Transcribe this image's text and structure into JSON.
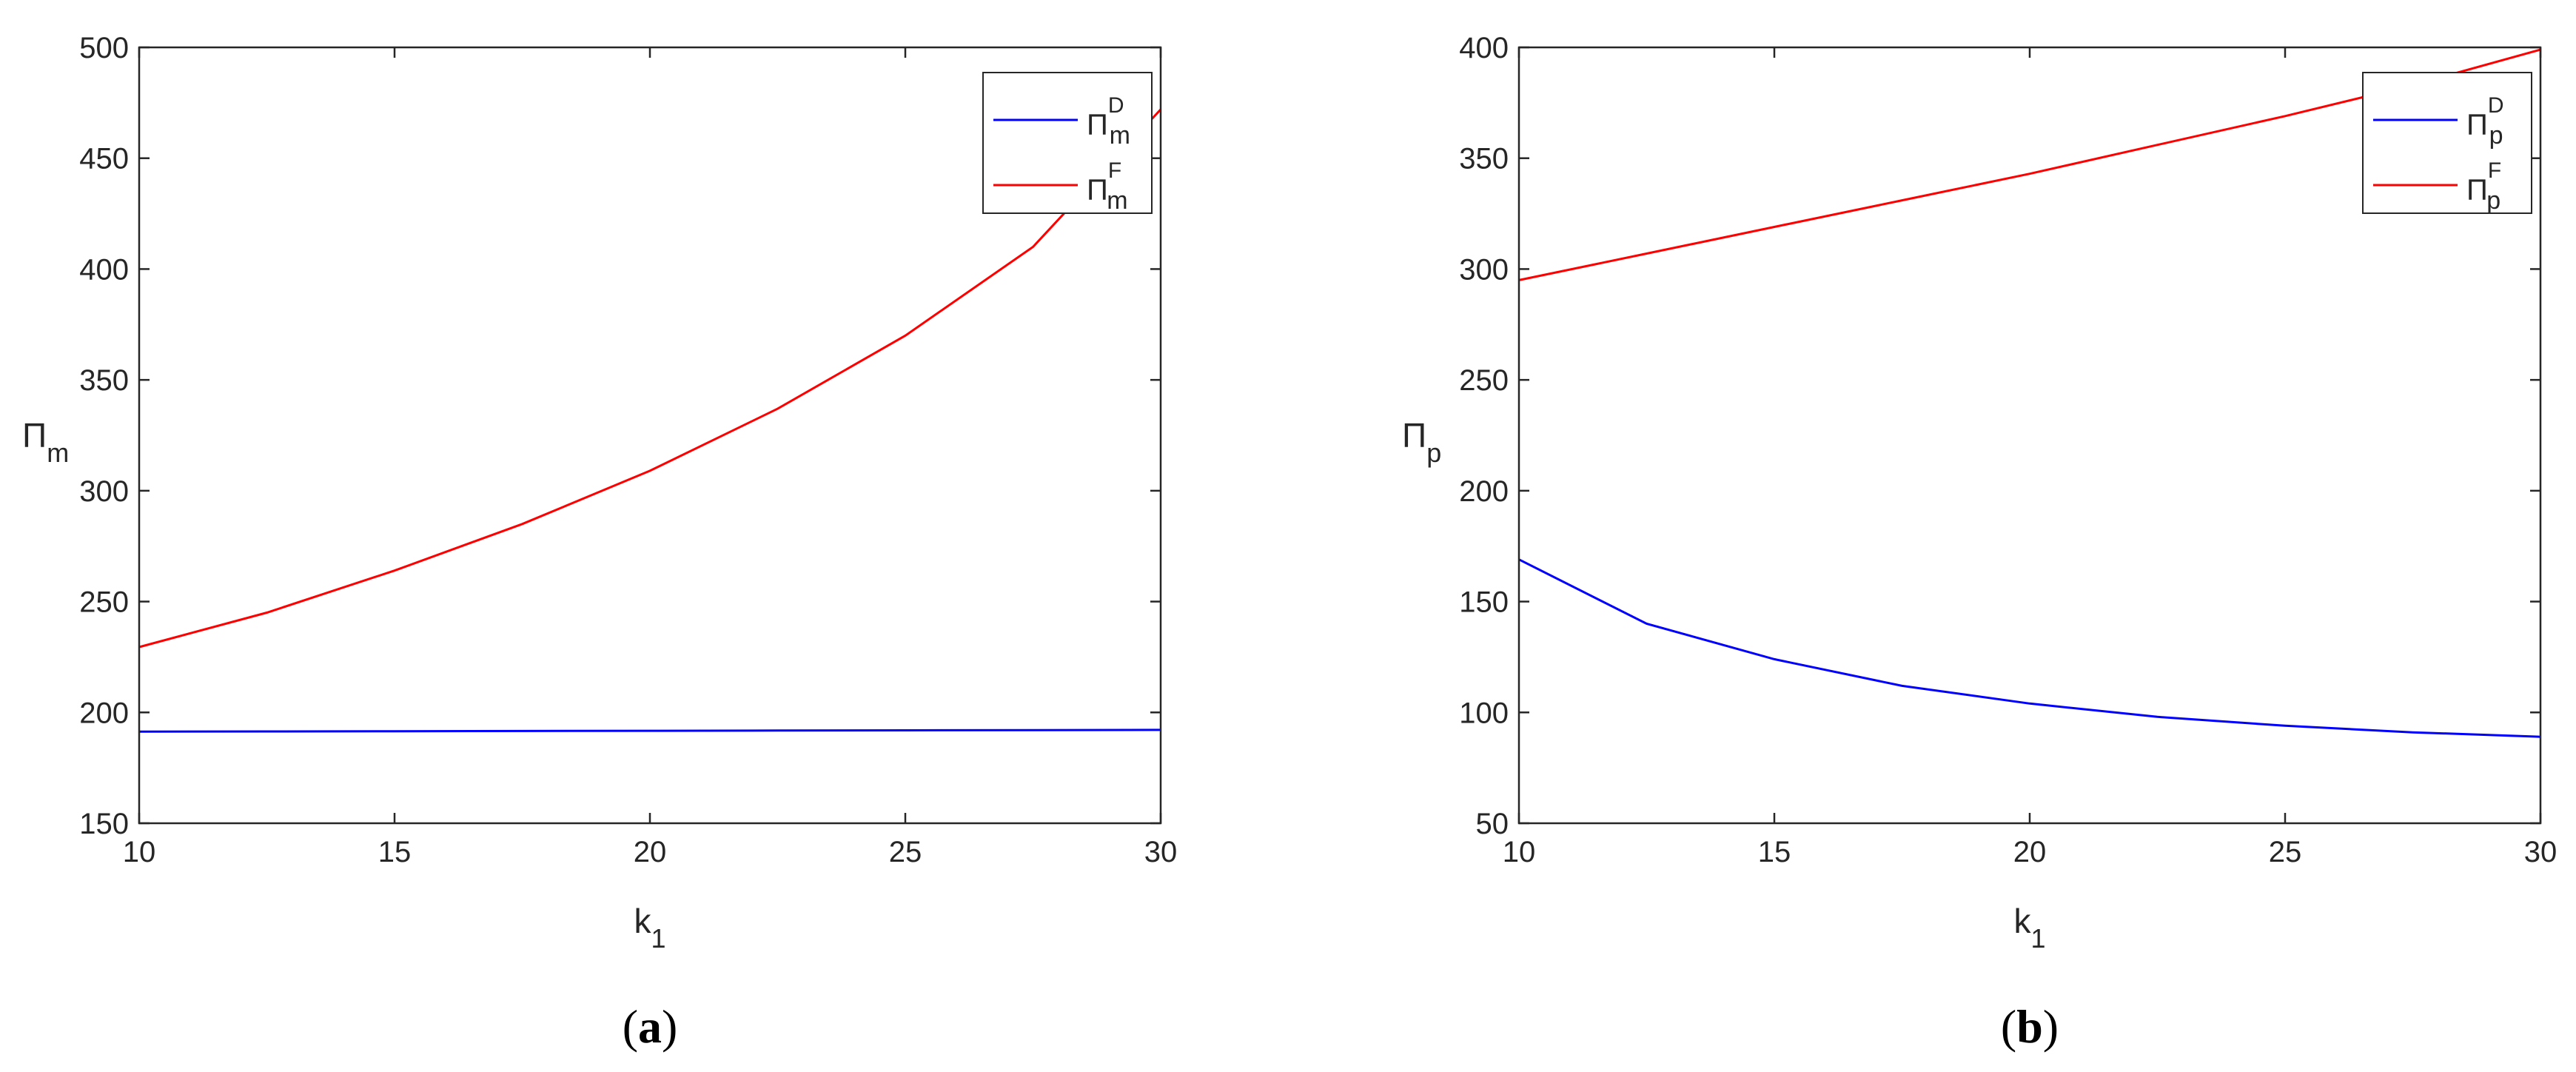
{
  "chart_data": [
    {
      "type": "line",
      "panel": "a",
      "caption": {
        "open": "(",
        "letter": "a",
        "close": ")"
      },
      "xlabel": {
        "main": "k",
        "sub": "1"
      },
      "ylabel": {
        "main": "Π",
        "sub": "m"
      },
      "xlim": [
        10,
        30
      ],
      "ylim": [
        150,
        500
      ],
      "xticks": [
        10,
        15,
        20,
        25,
        30
      ],
      "yticks": [
        150,
        200,
        250,
        300,
        350,
        400,
        450,
        500
      ],
      "grid": false,
      "legend_position": "top-right",
      "series": [
        {
          "name": {
            "main": "Π",
            "sub": "m",
            "sup": "D"
          },
          "color": "#0000ff",
          "x": [
            10,
            12.5,
            15,
            17.5,
            20,
            22.5,
            25,
            27.5,
            30
          ],
          "y": [
            191.3,
            191.4,
            191.5,
            191.6,
            191.7,
            191.8,
            191.9,
            192.0,
            192.1
          ]
        },
        {
          "name": {
            "main": "Π",
            "sub": "m",
            "sup": "F"
          },
          "color": "#ff0000",
          "x": [
            10,
            12.5,
            15,
            17.5,
            20,
            22.5,
            25,
            27.5,
            30
          ],
          "y": [
            229.5,
            245,
            264,
            285,
            309,
            337,
            370,
            410,
            472
          ]
        }
      ]
    },
    {
      "type": "line",
      "panel": "b",
      "caption": {
        "open": "(",
        "letter": "b",
        "close": ")"
      },
      "xlabel": {
        "main": "k",
        "sub": "1"
      },
      "ylabel": {
        "main": "Π",
        "sub": "p"
      },
      "xlim": [
        10,
        30
      ],
      "ylim": [
        50,
        400
      ],
      "xticks": [
        10,
        15,
        20,
        25,
        30
      ],
      "yticks": [
        50,
        100,
        150,
        200,
        250,
        300,
        350,
        400
      ],
      "grid": false,
      "legend_position": "top-right",
      "series": [
        {
          "name": {
            "main": "Π",
            "sub": "p",
            "sup": "D"
          },
          "color": "#0000ff",
          "x": [
            10,
            12.5,
            15,
            17.5,
            20,
            22.5,
            25,
            27.5,
            30
          ],
          "y": [
            169,
            140,
            124,
            112,
            104,
            98,
            94,
            91,
            89
          ]
        },
        {
          "name": {
            "main": "Π",
            "sub": "p",
            "sup": "F"
          },
          "color": "#ff0000",
          "x": [
            10,
            12.5,
            15,
            17.5,
            20,
            22.5,
            25,
            27.5,
            30
          ],
          "y": [
            295,
            307,
            319,
            331,
            343,
            356,
            369,
            383,
            399
          ]
        }
      ]
    }
  ]
}
